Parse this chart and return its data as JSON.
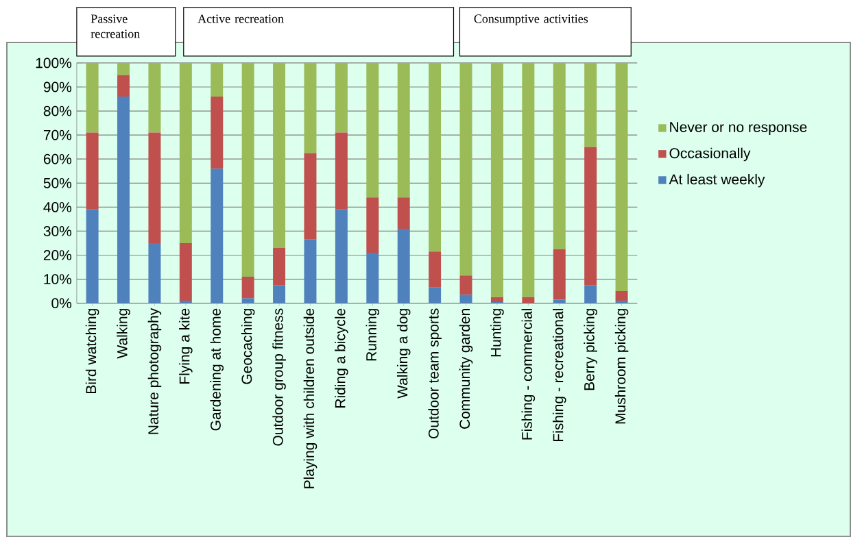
{
  "chart_data": {
    "type": "bar",
    "stacked": true,
    "categories": [
      "Bird watching",
      "Walking",
      "Nature photography",
      "Flying a kite",
      "Gardening at home",
      "Geocaching",
      "Outdoor group fitness",
      "Playing with children outside",
      "Riding a bicycle",
      "Running",
      "Walking a dog",
      "Outdoor team sports",
      "Community garden",
      "Hunting",
      "Fishing - commercial",
      "Fishing - recreational",
      "Berry picking",
      "Mushroom picking"
    ],
    "series": [
      {
        "name": "At least weekly",
        "color": "#4f81bd",
        "values": [
          39,
          86,
          25,
          1,
          56,
          2,
          7.5,
          26.5,
          39,
          21,
          31,
          6.5,
          3.5,
          0.5,
          0,
          1.5,
          7.5,
          1
        ]
      },
      {
        "name": "Occasionally",
        "color": "#c0504d",
        "values": [
          32,
          9,
          46,
          24,
          30,
          9,
          15.5,
          36,
          32,
          23,
          13,
          15,
          8,
          2,
          2.5,
          21,
          57.5,
          4
        ]
      },
      {
        "name": "Never or no response",
        "color": "#9bbb59",
        "values": [
          29,
          5,
          29,
          75,
          14,
          89,
          77,
          37.5,
          29,
          56,
          56,
          78.5,
          88.5,
          97.5,
          97.5,
          77.5,
          35,
          95
        ]
      }
    ],
    "ylim": [
      0,
      100
    ],
    "yticks": [
      {
        "value": 0,
        "label": "0%"
      },
      {
        "value": 10,
        "label": "10%"
      },
      {
        "value": 20,
        "label": "20%"
      },
      {
        "value": 30,
        "label": "30%"
      },
      {
        "value": 40,
        "label": "40%"
      },
      {
        "value": 50,
        "label": "50%"
      },
      {
        "value": 60,
        "label": "60%"
      },
      {
        "value": 70,
        "label": "70%"
      },
      {
        "value": 80,
        "label": "80%"
      },
      {
        "value": 90,
        "label": "90%"
      },
      {
        "value": 100,
        "label": "100%"
      }
    ],
    "grid": "y",
    "legend": "right",
    "annotations": [
      "Passive recreation",
      "Active recreation",
      "Consumptive activities"
    ]
  }
}
